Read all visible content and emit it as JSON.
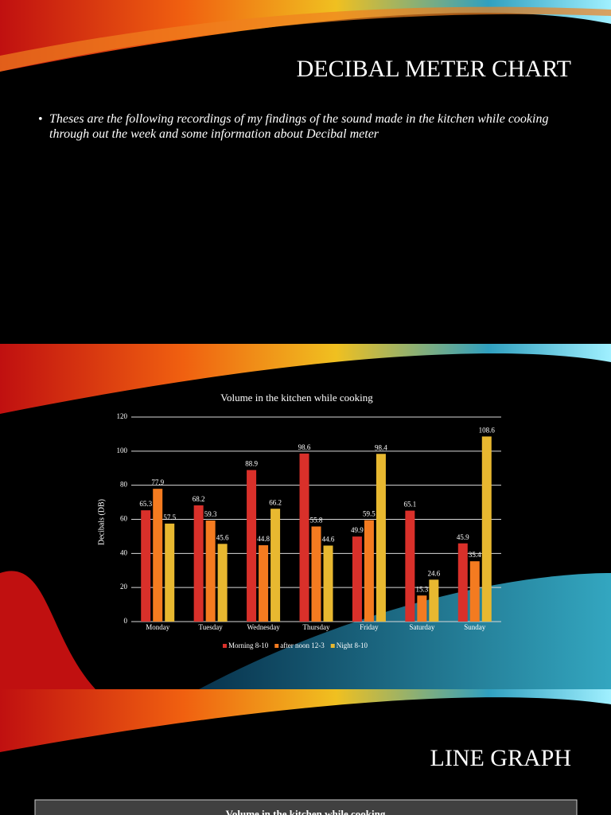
{
  "slide1": {
    "title": "DECIBAL METER CHART",
    "bullet": "Theses are the following recordings of my findings of the sound made in the kitchen while cooking through out the week and some information about Decibal meter"
  },
  "chart_data": {
    "type": "bar",
    "title": "Volume in the kitchen while cooking",
    "y_label": "Decibals (DB)",
    "categories": [
      "Monday",
      "Tuesday",
      "Wednesday",
      "Thursday",
      "Friday",
      "Saturday",
      "Sunday"
    ],
    "series": [
      {
        "name": "Morning 8-10",
        "color": "#d9302a",
        "values": [
          65.3,
          68.2,
          88.9,
          98.6,
          49.9,
          65.1,
          45.9
        ]
      },
      {
        "name": "after noon 12-3",
        "color": "#f47b20",
        "values": [
          77.9,
          59.3,
          44.8,
          55.8,
          59.5,
          15.3,
          35.4
        ]
      },
      {
        "name": "Night 8-10",
        "color": "#e8b830",
        "values": [
          57.5,
          45.6,
          66.2,
          44.6,
          98.4,
          24.6,
          108.6
        ]
      }
    ],
    "ylim": [
      0,
      120
    ],
    "yticks": [
      0,
      20,
      40,
      60,
      80,
      100,
      120
    ],
    "grid": true,
    "legend": "bottom"
  },
  "slide3": {
    "title": "LINE GRAPH",
    "chart_title": "Volume in the kitchen while cooking"
  }
}
